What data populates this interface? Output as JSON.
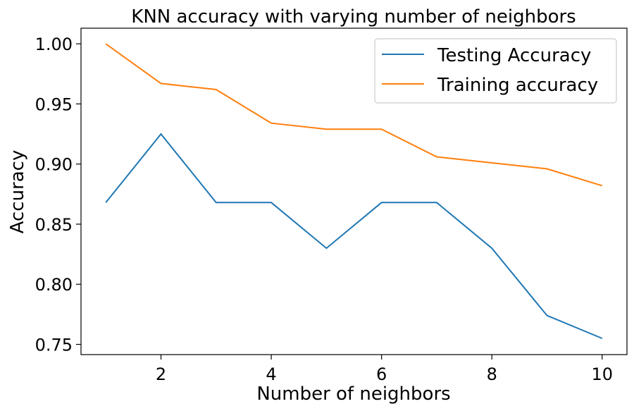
{
  "chart_data": {
    "type": "line",
    "title": "KNN accuracy with varying number of neighbors",
    "xlabel": "Number of neighbors",
    "ylabel": "Accuracy",
    "x": [
      1,
      2,
      3,
      4,
      5,
      6,
      7,
      8,
      9,
      10
    ],
    "xlim": [
      0.55,
      10.45
    ],
    "ylim": [
      0.7415,
      1.013
    ],
    "xticks": [
      2,
      4,
      6,
      8,
      10
    ],
    "xtick_labels": [
      "2",
      "4",
      "6",
      "8",
      "10"
    ],
    "yticks": [
      0.75,
      0.8,
      0.85,
      0.9,
      0.95,
      1.0
    ],
    "ytick_labels": [
      "0.75",
      "0.80",
      "0.85",
      "0.90",
      "0.95",
      "1.00"
    ],
    "grid": false,
    "legend_position": "top-right",
    "series": [
      {
        "name": "Testing Accuracy",
        "color": "#1f77b4",
        "values": [
          0.868,
          0.925,
          0.868,
          0.868,
          0.83,
          0.868,
          0.868,
          0.83,
          0.774,
          0.755
        ]
      },
      {
        "name": "Training accuracy",
        "color": "#ff7f0e",
        "values": [
          1.0,
          0.967,
          0.962,
          0.934,
          0.929,
          0.929,
          0.906,
          0.901,
          0.896,
          0.882
        ]
      }
    ]
  }
}
